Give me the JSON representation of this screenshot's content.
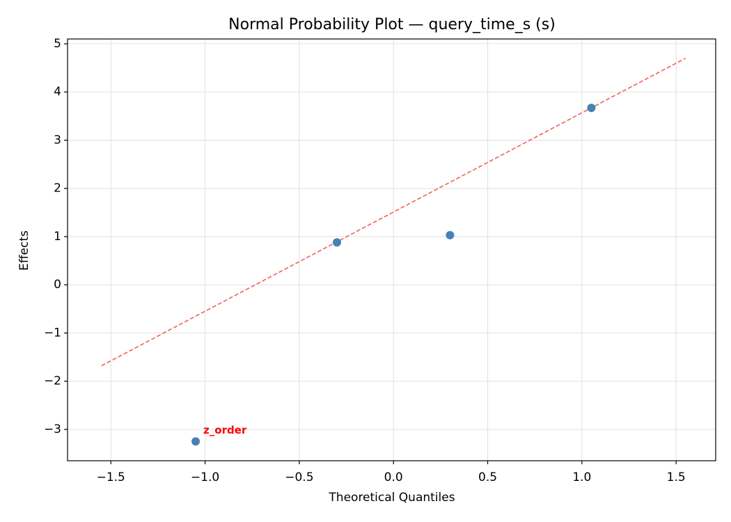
{
  "chart_data": {
    "type": "scatter",
    "title": "Normal Probability Plot — query_time_s (s)",
    "x_label": "Theoretical Quantiles",
    "y_label": "Effects",
    "series": [
      {
        "color": "#4682b4",
        "x": [
          -1.05,
          -0.3,
          0.3,
          1.05
        ],
        "values": [
          -3.25,
          0.88,
          1.03,
          3.67
        ],
        "point_labels": [
          "z_order",
          null,
          null,
          null
        ],
        "point_label_color": "#ff0000"
      }
    ],
    "fit_line": {
      "x": [
        -1.55,
        1.55
      ],
      "y": [
        -1.68,
        4.7
      ],
      "color": "#f0605a"
    },
    "xlim": [
      -1.73,
      1.71
    ],
    "ylim": [
      -3.65,
      5.1
    ],
    "xticks": [
      {
        "value": -1.5,
        "label": "−1.5"
      },
      {
        "value": -1,
        "label": "−1.0"
      },
      {
        "value": -0.5,
        "label": "−0.5"
      },
      {
        "value": 0,
        "label": "0.0"
      },
      0.5,
      {
        "value": 1,
        "label": "1.0"
      },
      1.5
    ],
    "yticks": [
      {
        "value": -3,
        "label": "−3"
      },
      {
        "value": -2,
        "label": "−2"
      },
      {
        "value": -1,
        "label": "−1"
      },
      0,
      1,
      2,
      3,
      4,
      5
    ],
    "grid": true
  }
}
